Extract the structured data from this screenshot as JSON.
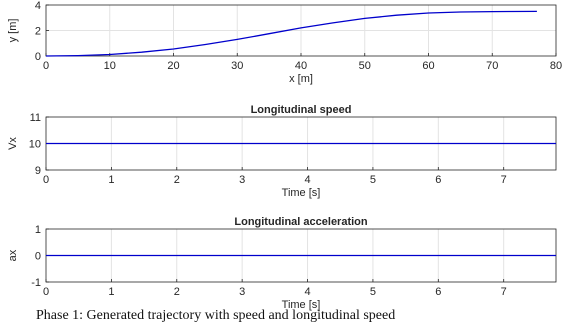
{
  "caption": "Phase 1: Generated trajectory with speed and longitudinal speed",
  "colors": {
    "line": "#0000cc",
    "grid": "#e3e3e3",
    "axes": "#262626"
  },
  "chart_data": [
    {
      "type": "line",
      "title": "",
      "xlabel": "x [m]",
      "ylabel": "y [m]",
      "xlim": [
        0,
        80
      ],
      "ylim": [
        0,
        4
      ],
      "xticks": [
        "0",
        "10",
        "20",
        "30",
        "40",
        "50",
        "60",
        "70",
        "80"
      ],
      "yticks": [
        "0",
        "2",
        "4"
      ],
      "grid": true,
      "series": [
        {
          "x": [
            0,
            5,
            10,
            15,
            20,
            25,
            30,
            35,
            40,
            45,
            50,
            55,
            60,
            65,
            70,
            73,
            77
          ],
          "values": [
            0.0,
            0.03,
            0.12,
            0.3,
            0.55,
            0.9,
            1.3,
            1.75,
            2.2,
            2.6,
            2.95,
            3.2,
            3.37,
            3.45,
            3.48,
            3.49,
            3.5
          ]
        }
      ]
    },
    {
      "type": "line",
      "title": "Longitudinal speed",
      "xlabel": "Time [s]",
      "ylabel": "Vx",
      "xlim": [
        0,
        7.8
      ],
      "ylim": [
        9,
        11
      ],
      "xticks": [
        "0",
        "1",
        "2",
        "3",
        "4",
        "5",
        "6",
        "7"
      ],
      "yticks": [
        "9",
        "10",
        "11"
      ],
      "grid": true,
      "series": [
        {
          "x": [
            0,
            7.8
          ],
          "values": [
            10,
            10
          ]
        }
      ]
    },
    {
      "type": "line",
      "title": "Longitudinal acceleration",
      "xlabel": "Time [s]",
      "ylabel": "ax",
      "xlim": [
        0,
        7.8
      ],
      "ylim": [
        -1,
        1
      ],
      "xticks": [
        "0",
        "1",
        "2",
        "3",
        "4",
        "5",
        "6",
        "7"
      ],
      "yticks": [
        "-1",
        "0",
        "1"
      ],
      "grid": true,
      "series": [
        {
          "x": [
            0,
            7.8
          ],
          "values": [
            0,
            0
          ]
        }
      ]
    }
  ]
}
